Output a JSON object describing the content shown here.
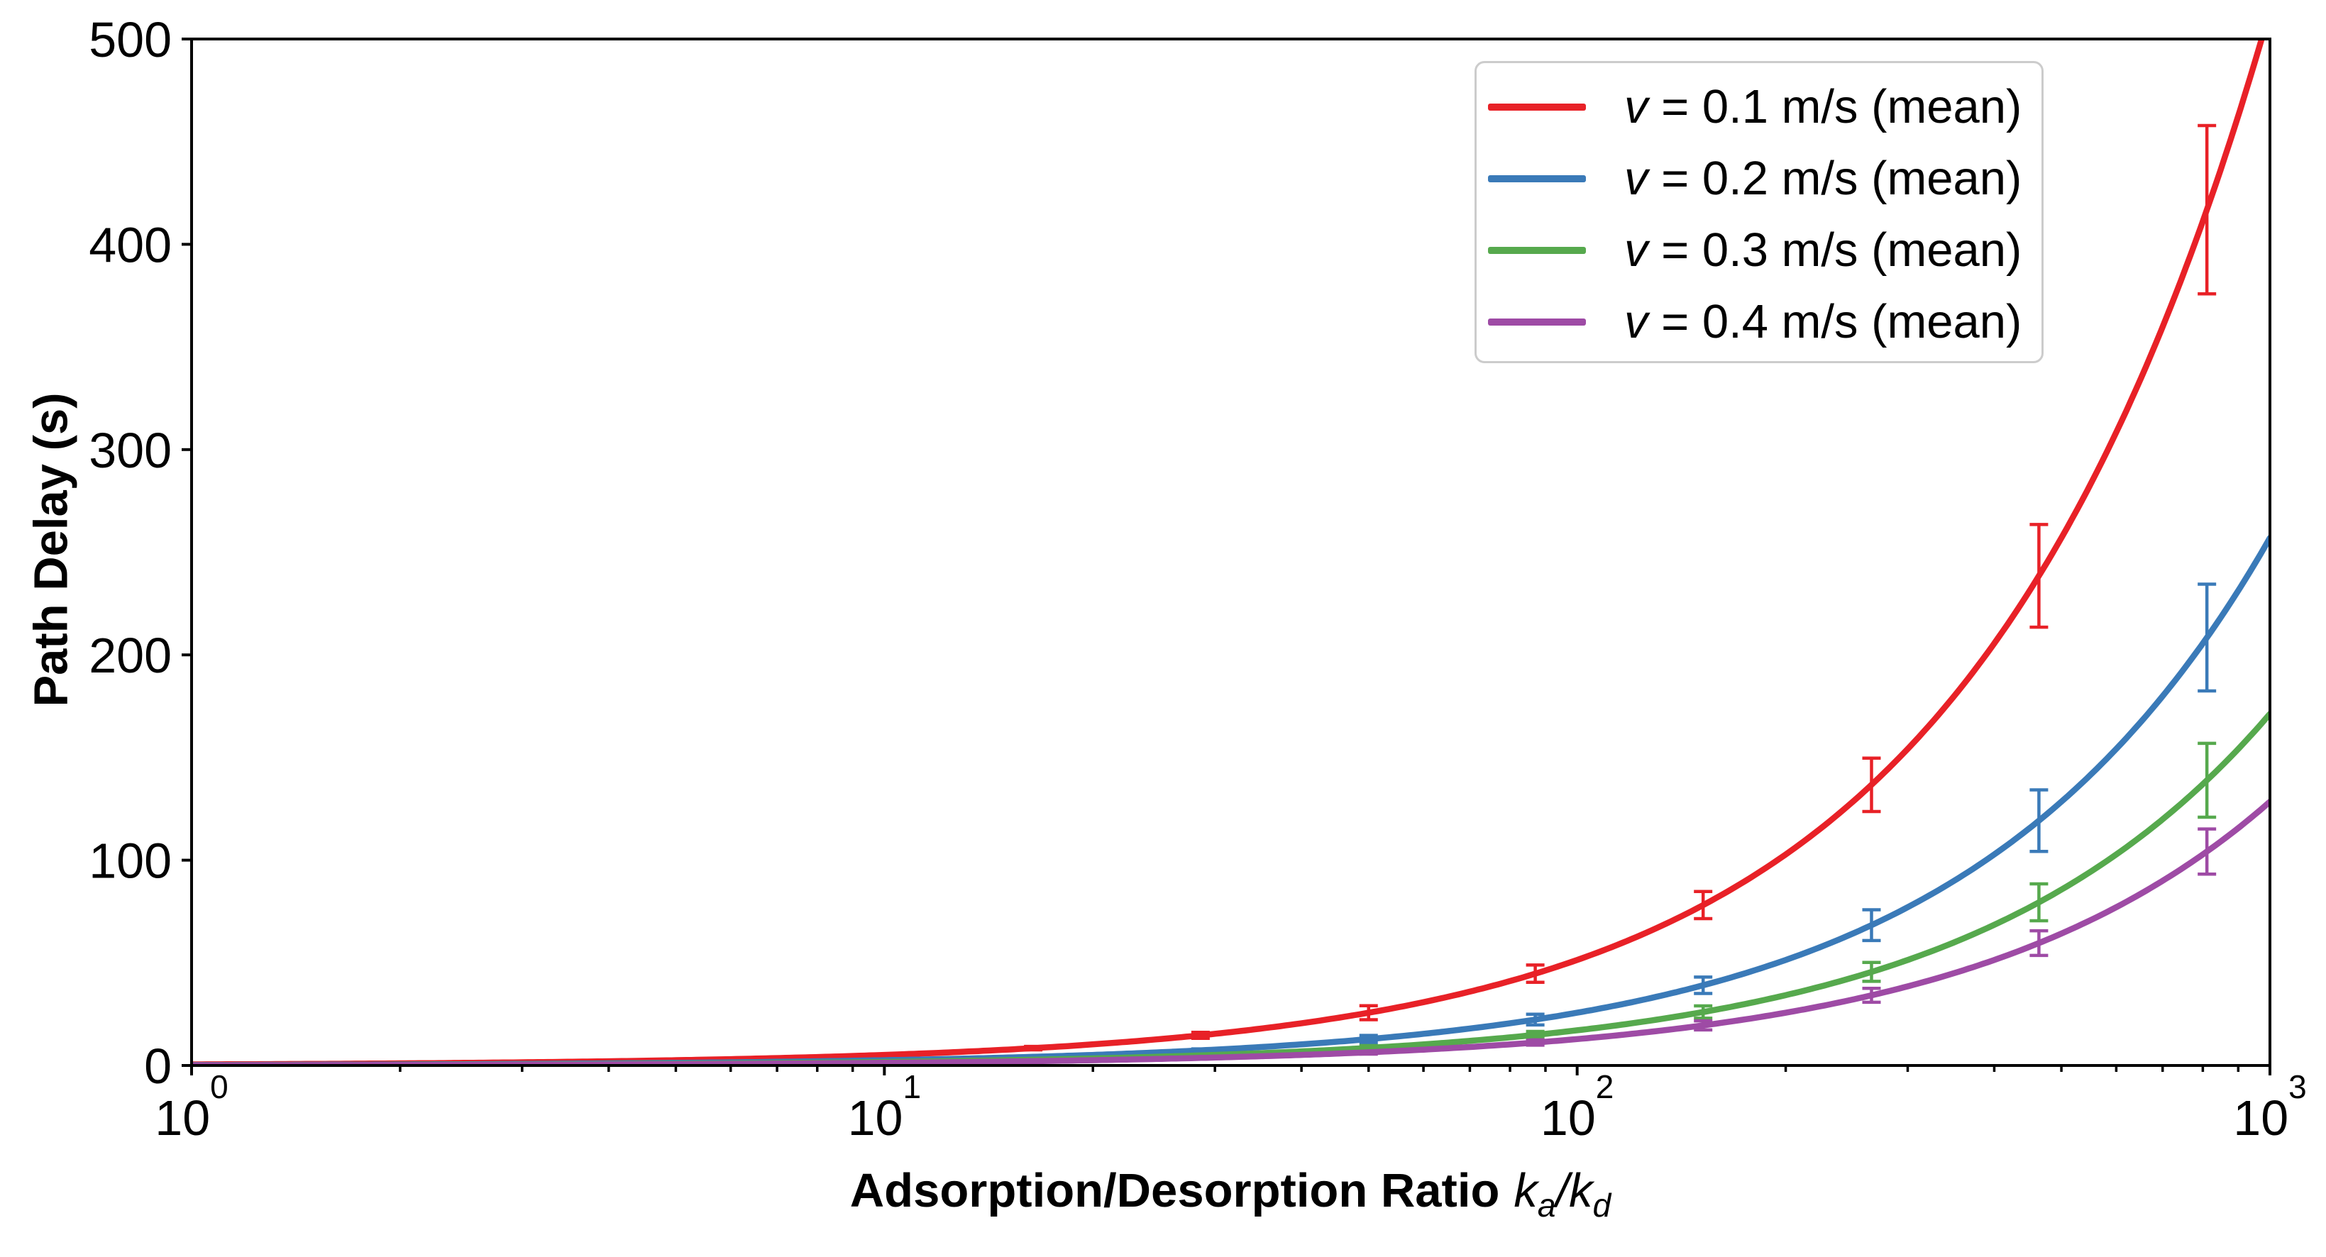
{
  "chart_data": {
    "type": "line",
    "title": "",
    "xlabel_plain": "Adsorption/Desorption Ratio",
    "xlabel_math": {
      "num_base": "k",
      "num_sub": "a",
      "divider": "/",
      "den_base": "k",
      "den_sub": "d"
    },
    "ylabel": "Path Delay (s)",
    "x_scale": "log",
    "y_scale": "linear",
    "xlim": [
      1,
      1000
    ],
    "ylim": [
      0,
      500
    ],
    "grid": false,
    "legend_position": "upper right",
    "x_ticks": [
      {
        "base": "10",
        "exp": "0",
        "value": 1
      },
      {
        "base": "10",
        "exp": "1",
        "value": 10
      },
      {
        "base": "10",
        "exp": "2",
        "value": 100
      },
      {
        "base": "10",
        "exp": "3",
        "value": 1000
      }
    ],
    "y_ticks": [
      0,
      100,
      200,
      300,
      400,
      500
    ],
    "error_x": [
      1,
      1.75,
      3.06,
      5.35,
      9.36,
      16.4,
      28.6,
      50,
      87,
      152,
      266,
      464,
      811
    ],
    "series": [
      {
        "id": "v01",
        "label": "v = 0.1 m/s (mean)",
        "label_var": "v",
        "label_rest": " = 0.1 m/s (mean)",
        "velocity_mps": 0.1,
        "color": "#e82127",
        "slope": 0.514,
        "y": [
          0.51,
          0.9,
          1.57,
          2.75,
          4.81,
          8.43,
          14.7,
          25.7,
          44.72,
          78.13,
          136.72,
          238.5,
          416.85
        ],
        "err": [
          0.05,
          0.09,
          0.16,
          0.28,
          0.48,
          0.84,
          1.47,
          3.4,
          4.2,
          6.6,
          13.0,
          25.0,
          41.0
        ]
      },
      {
        "id": "v02",
        "label": "v = 0.2 m/s (mean)",
        "label_var": "v",
        "label_rest": " = 0.2 m/s (mean)",
        "velocity_mps": 0.2,
        "color": "#3a7ab8",
        "slope": 0.257,
        "y": [
          0.26,
          0.45,
          0.79,
          1.38,
          2.41,
          4.21,
          7.35,
          12.85,
          22.36,
          39.06,
          68.36,
          119.25,
          208.43
        ],
        "err": [
          0.03,
          0.05,
          0.08,
          0.14,
          0.24,
          0.42,
          0.74,
          1.8,
          2.6,
          4.0,
          7.5,
          15.0,
          26.0
        ]
      },
      {
        "id": "v03",
        "label": "v = 0.3 m/s (mean)",
        "label_var": "v",
        "label_rest": " = 0.3 m/s (mean)",
        "velocity_mps": 0.3,
        "color": "#56a94d",
        "slope": 0.1713,
        "y": [
          0.17,
          0.3,
          0.52,
          0.92,
          1.6,
          2.81,
          4.9,
          8.57,
          14.9,
          26.04,
          45.57,
          79.48,
          138.92
        ],
        "err": [
          0.02,
          0.03,
          0.05,
          0.09,
          0.16,
          0.28,
          0.49,
          1.1,
          1.7,
          3.0,
          4.6,
          9.0,
          18.0
        ]
      },
      {
        "id": "v04",
        "label": "v = 0.4 m/s (mean)",
        "label_var": "v",
        "label_rest": " = 0.4 m/s (mean)",
        "velocity_mps": 0.4,
        "color": "#9e4ba5",
        "slope": 0.1285,
        "y": [
          0.13,
          0.22,
          0.39,
          0.69,
          1.2,
          2.11,
          3.68,
          6.43,
          11.18,
          19.53,
          34.18,
          59.62,
          104.21
        ],
        "err": [
          0.01,
          0.02,
          0.04,
          0.07,
          0.12,
          0.21,
          0.37,
          0.9,
          1.3,
          2.2,
          3.4,
          6.0,
          11.0
        ]
      }
    ]
  }
}
